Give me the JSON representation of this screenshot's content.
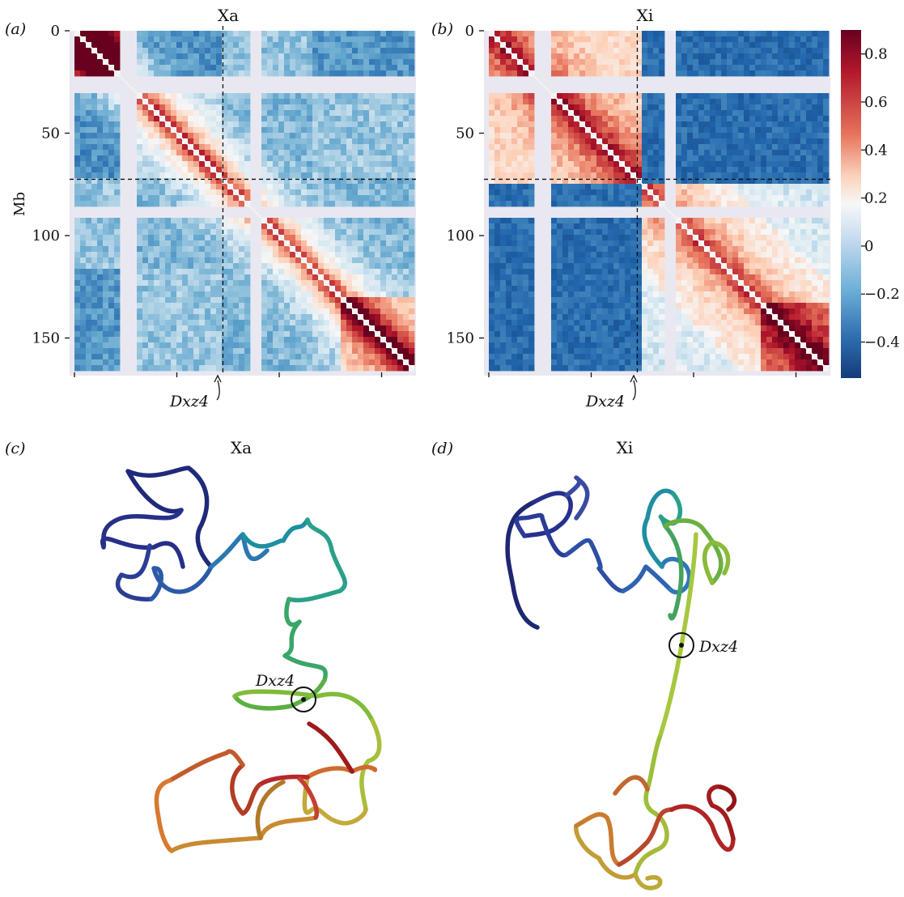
{
  "panels": {
    "a": {
      "label": "(a)",
      "title": "Xa"
    },
    "b": {
      "label": "(b)",
      "title": "Xi"
    },
    "c": {
      "label": "(c)",
      "title": "Xa"
    },
    "d": {
      "label": "(d)",
      "title": "Xi"
    }
  },
  "annotation": {
    "dxz4": "Dxz4"
  },
  "colors": {
    "missing": "#e9e8f1",
    "high": "#a50f15",
    "mid": "#f7f7f7",
    "low": "#1d4f91"
  },
  "chart_data": [
    {
      "type": "heatmap",
      "panel": "a",
      "title": "Xa",
      "ylabel": "Mb",
      "xlim": [
        0,
        166
      ],
      "ylim": [
        0,
        166
      ],
      "yticks": [
        "0",
        "50",
        "100",
        "150"
      ],
      "ytick_values": [
        0,
        50,
        100,
        150
      ],
      "xtick_values": [
        0,
        50,
        100,
        150
      ],
      "marker": {
        "label": "Dxz4",
        "position_mb": 72.5
      },
      "missing_regions_mb": [
        [
          23,
          31
        ],
        [
          86,
          90
        ]
      ],
      "pattern": "distance-decay with two checkerboard domains; weaker separation at Dxz4"
    },
    {
      "type": "heatmap",
      "panel": "b",
      "title": "Xi",
      "xlim": [
        0,
        166
      ],
      "ylim": [
        0,
        166
      ],
      "yticks": [
        "0",
        "50",
        "100",
        "150"
      ],
      "ytick_values": [
        0,
        50,
        100,
        150
      ],
      "xtick_values": [
        0,
        50,
        100,
        150
      ],
      "marker": {
        "label": "Dxz4",
        "position_mb": 72.5
      },
      "missing_regions_mb": [
        [
          23,
          31
        ],
        [
          86,
          90
        ]
      ],
      "pattern": "two megadomains split at Dxz4"
    },
    {
      "type": "colorbar",
      "range": [
        -0.55,
        0.9
      ],
      "tick_labels": [
        "0.8",
        "0.6",
        "0.4",
        "0.2",
        "0",
        "−0.2",
        "−0.4"
      ],
      "tick_values": [
        0.8,
        0.6,
        0.4,
        0.2,
        0,
        -0.2,
        -0.4
      ]
    }
  ]
}
